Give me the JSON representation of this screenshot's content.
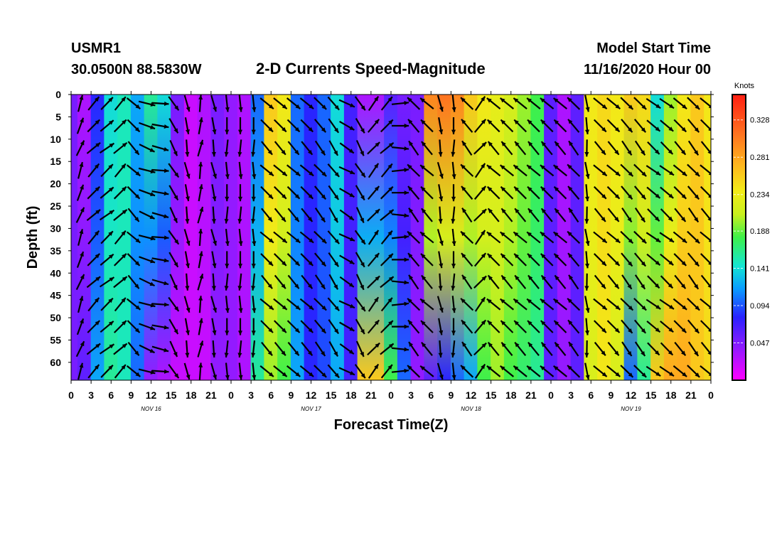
{
  "header": {
    "station_id": "USMR1",
    "coordinates": "30.0500N 88.5830W",
    "title": "2-D Currents Speed-Magnitude",
    "model_start_label": "Model Start Time",
    "model_start_value": "11/16/2020 Hour 00"
  },
  "chart_data": {
    "type": "heatmap",
    "title": "2-D Currents Speed-Magnitude",
    "xlabel": "Forecast Time(Z)",
    "ylabel": "Depth (ft)",
    "colorbar_label": "Knots",
    "colorbar_ticks": [
      0.047,
      0.094,
      0.141,
      0.188,
      0.234,
      0.281,
      0.328
    ],
    "colorbar_range": [
      0.0,
      0.36
    ],
    "ylim": [
      0,
      64
    ],
    "y_ticks": [
      0,
      5,
      10,
      15,
      20,
      25,
      30,
      35,
      40,
      45,
      50,
      55,
      60
    ],
    "x_range_hours": [
      0,
      96
    ],
    "x_tick_labels": [
      "0",
      "3",
      "6",
      "9",
      "12",
      "15",
      "18",
      "21",
      "0",
      "3",
      "6",
      "9",
      "12",
      "15",
      "18",
      "21",
      "0",
      "3",
      "6",
      "9",
      "12",
      "15",
      "18",
      "21",
      "0",
      "3",
      "6",
      "9",
      "12",
      "15",
      "18",
      "21",
      "0"
    ],
    "day_labels": [
      {
        "label": "NOV 16",
        "hour": 12
      },
      {
        "label": "NOV 17",
        "hour": 36
      },
      {
        "label": "NOV 18",
        "hour": 60
      },
      {
        "label": "NOV 19",
        "hour": 84
      }
    ],
    "speed_profile": {
      "hours": [
        0,
        2,
        4,
        6,
        8,
        10,
        12,
        14,
        16,
        18,
        20,
        22,
        24,
        26,
        28,
        30,
        32,
        34,
        36,
        38,
        40,
        42,
        44,
        46,
        48,
        50,
        52,
        54,
        56,
        58,
        60,
        62,
        64,
        66,
        68,
        70,
        72,
        74,
        76,
        78,
        80,
        82,
        84,
        86,
        88,
        90,
        92,
        94,
        96
      ],
      "surface_knots": [
        0.05,
        0.03,
        0.08,
        0.14,
        0.15,
        0.12,
        0.16,
        0.14,
        0.05,
        0.02,
        0.03,
        0.05,
        0.04,
        0.03,
        0.1,
        0.26,
        0.24,
        0.1,
        0.08,
        0.1,
        0.14,
        0.07,
        0.03,
        0.03,
        0.06,
        0.05,
        0.05,
        0.3,
        0.31,
        0.3,
        0.26,
        0.24,
        0.23,
        0.22,
        0.2,
        0.18,
        0.06,
        0.03,
        0.06,
        0.24,
        0.25,
        0.24,
        0.26,
        0.25,
        0.14,
        0.2,
        0.24,
        0.26,
        0.24
      ],
      "bottom_knots": [
        0.05,
        0.06,
        0.12,
        0.16,
        0.15,
        0.1,
        0.04,
        0.03,
        0.02,
        0.02,
        0.02,
        0.04,
        0.04,
        0.03,
        0.16,
        0.2,
        0.18,
        0.12,
        0.08,
        0.09,
        0.12,
        0.07,
        0.26,
        0.26,
        0.18,
        0.1,
        0.04,
        0.06,
        0.08,
        0.1,
        0.12,
        0.18,
        0.2,
        0.18,
        0.17,
        0.16,
        0.06,
        0.04,
        0.06,
        0.22,
        0.24,
        0.22,
        0.1,
        0.16,
        0.26,
        0.28,
        0.28,
        0.26,
        0.25
      ]
    },
    "arrow_direction_deg": {
      "note": "estimated direction the arrow points (0=up, clockwise), per 2-hour column",
      "values": [
        20,
        45,
        50,
        45,
        135,
        110,
        100,
        150,
        170,
        10,
        170,
        180,
        180,
        180,
        135,
        135,
        135,
        135,
        140,
        145,
        120,
        150,
        40,
        45,
        90,
        320,
        315,
        170,
        180,
        320,
        40,
        315,
        315,
        315,
        315,
        315,
        315,
        320,
        175,
        135,
        135,
        140,
        140,
        130,
        130,
        135,
        140,
        135,
        135
      ]
    },
    "arrow_depths_ft": [
      2,
      7,
      12,
      17,
      22,
      27,
      32,
      37,
      42,
      47,
      52,
      57,
      62
    ]
  }
}
